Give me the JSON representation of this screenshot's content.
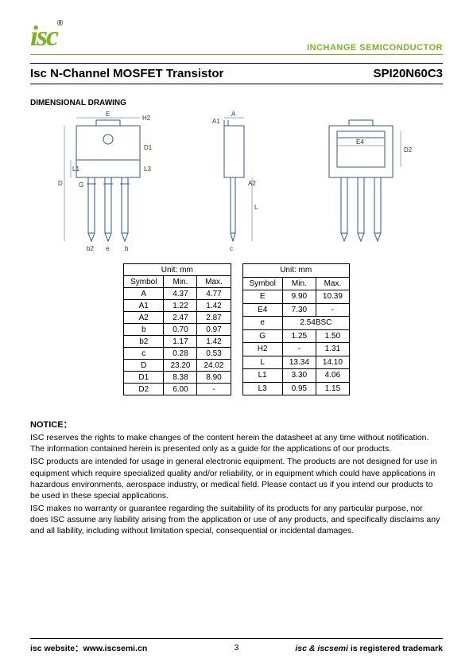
{
  "header": {
    "logo": "isc",
    "logo_reg": "®",
    "company": "INCHANGE SEMICONDUCTOR",
    "logo_color": "#7ab51d"
  },
  "title": {
    "left": "Isc N-Channel MOSFET Transistor",
    "right": "SPI20N60C3"
  },
  "section_heading": "DIMENSIONAL DRAWING",
  "drawing": {
    "line_color": "#2b5a8a",
    "label_E": "E",
    "label_H2": "H2",
    "label_A": "A",
    "label_D1": "D1",
    "label_D": "D",
    "label_L1": "L1",
    "label_L3": "L3",
    "label_G": "G",
    "label_A1": "A1",
    "label_b2": "b2",
    "label_L": "L",
    "label_A2": "A2",
    "label_E4": "E4",
    "label_D2": "D2",
    "label_e": "e",
    "label_c": "c",
    "label_b": "b"
  },
  "table1": {
    "unit_label": "Unit: mm",
    "cols": [
      "Symbol",
      "Min.",
      "Max."
    ],
    "rows": [
      [
        "A",
        "4.37",
        "4.77"
      ],
      [
        "A1",
        "1.22",
        "1.42"
      ],
      [
        "A2",
        "2.47",
        "2.87"
      ],
      [
        "b",
        "0.70",
        "0.97"
      ],
      [
        "b2",
        "1.17",
        "1.42"
      ],
      [
        "c",
        "0.28",
        "0.53"
      ],
      [
        "D",
        "23.20",
        "24.02"
      ],
      [
        "D1",
        "8.38",
        "8.90"
      ],
      [
        "D2",
        "6.00",
        "-"
      ]
    ]
  },
  "table2": {
    "unit_label": "Unit: mm",
    "cols": [
      "Symbol",
      "Min.",
      "Max."
    ],
    "rows": [
      [
        "E",
        "9.90",
        "10.39"
      ],
      [
        "E4",
        "7.30",
        "-"
      ],
      [
        "e",
        "2.54BSC",
        ""
      ],
      [
        "G",
        "1.25",
        "1.50"
      ],
      [
        "H2",
        "-",
        "1.31"
      ],
      [
        "L",
        "13.34",
        "14.10"
      ],
      [
        "L1",
        "3.30",
        "4.06"
      ],
      [
        "L3",
        "0.95",
        "1.15"
      ]
    ],
    "merged_row_index": 2
  },
  "notice": {
    "heading": "NOTICE：",
    "p1": "ISC reserves the rights to make changes of the content herein the datasheet at any time without notification. The information contained herein is presented only as a guide for the applications of our products.",
    "p2": "ISC products are intended for usage in general electronic equipment. The products are not designed for use in equipment which require specialized quality and/or reliability, or in equipment which could have applications in hazardous environments, aerospace industry, or medical field. Please contact us if you intend our products to be used in these special applications.",
    "p3": "ISC makes no warranty or guarantee regarding the suitability of its products for any particular purpose, nor does ISC assume any liability arising from the application or use of any products, and specifically disclaims any and all liability, including without limitation special, consequential or incidental damages."
  },
  "footer": {
    "left_label": "isc website：",
    "left_url": "www.iscsemi.cn",
    "page": "3",
    "right_italic": "isc & iscsemi",
    "right_rest": " is registered trademark"
  }
}
